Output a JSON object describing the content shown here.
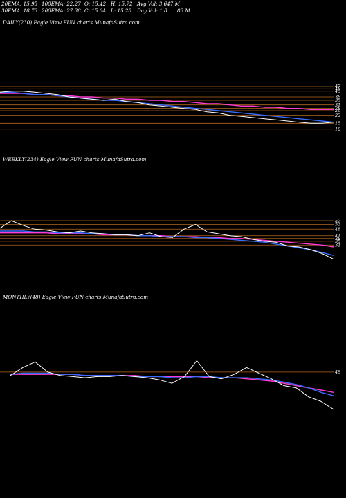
{
  "header": {
    "ema20": "20EMA: 15.95",
    "ema100": "100EMA: 22.27",
    "open": "O: 15.42",
    "high": "H: 15.72",
    "avg_vol": "Avg Vol: 3.647 M",
    "ema30": "30EMA: 18.73",
    "ema200": "200EMA: 27.38",
    "close": "C: 15.64",
    "low": "L: 15.28",
    "day_vol": "Day Vol: 1.8",
    "day_vol_unit": "83 M"
  },
  "chart_data": [
    {
      "type": "line",
      "title": "DAILY(230) Eagle   View  FUN  charts MunafaSutra.com",
      "y_tick_labels": [
        "47",
        "45",
        "43",
        "38",
        "35",
        "31",
        "28",
        "26",
        "22",
        "15",
        "10"
      ],
      "colors": {
        "price": "#ffffff",
        "short_ema": "#3a6bff",
        "long_ema": "#ff3bd1",
        "levels": "#b5651d",
        "background": "#000000"
      },
      "series": [
        {
          "values": [
            42,
            43,
            43,
            42,
            41,
            40,
            38,
            37,
            36,
            35,
            36,
            34,
            33,
            31,
            30,
            29,
            28,
            27,
            25,
            24,
            22,
            21,
            20,
            19,
            18,
            17,
            16,
            15,
            15,
            16
          ]
        },
        {
          "values": [
            42,
            42,
            41,
            40,
            40,
            39,
            38,
            37,
            36,
            35,
            35,
            34,
            33,
            32,
            31,
            30,
            29,
            28,
            27,
            26,
            25,
            24,
            23,
            22,
            21,
            20,
            19,
            18,
            17,
            16
          ]
        },
        {
          "values": [
            41,
            41,
            41,
            40,
            40,
            39,
            39,
            38,
            38,
            37,
            37,
            36,
            36,
            35,
            35,
            34,
            34,
            33,
            32,
            32,
            31,
            30,
            30,
            29,
            29,
            28,
            28,
            27,
            27,
            27
          ]
        }
      ]
    },
    {
      "type": "line",
      "title": "WEEKLY(234) Eagle   View  FUN  charts MunafaSutra.com",
      "y_tick_labels": [
        "57",
        "53",
        "48",
        "41",
        "38",
        "35",
        "31"
      ],
      "colors": {
        "price": "#ffffff",
        "short_ema": "#3a6bff",
        "long_ema": "#ff3bd1",
        "levels": "#b5651d",
        "background": "#000000"
      },
      "series": [
        {
          "values": [
            49,
            57,
            52,
            48,
            47,
            45,
            44,
            46,
            44,
            43,
            42,
            42,
            41,
            44,
            40,
            39,
            48,
            53,
            45,
            43,
            41,
            40,
            37,
            35,
            34,
            30,
            29,
            26,
            22,
            16
          ]
        },
        {
          "values": [
            46,
            46,
            46,
            45,
            45,
            44,
            44,
            44,
            43,
            43,
            42,
            42,
            41,
            41,
            40,
            40,
            40,
            39,
            39,
            38,
            37,
            36,
            35,
            34,
            32,
            30,
            28,
            26,
            23,
            20
          ]
        },
        {
          "values": [
            44,
            44,
            44,
            44,
            44,
            43,
            43,
            43,
            43,
            42,
            42,
            42,
            41,
            41,
            41,
            40,
            40,
            40,
            39,
            39,
            38,
            38,
            37,
            36,
            35,
            34,
            33,
            32,
            31,
            29
          ]
        }
      ]
    },
    {
      "type": "line",
      "title": "MONTHLY(48) Eagle   View  FUN  charts MunafaSutra.com",
      "y_tick_labels": [
        "48"
      ],
      "colors": {
        "price": "#ffffff",
        "short_ema": "#3a6bff",
        "long_ema": "#ff3bd1",
        "levels": "#b5651d",
        "background": "#000000"
      },
      "series": [
        {
          "values": [
            45,
            52,
            57,
            48,
            45,
            44,
            43,
            44,
            44,
            45,
            44,
            43,
            41,
            38,
            44,
            58,
            44,
            42,
            46,
            52,
            47,
            42,
            36,
            34,
            26,
            22,
            15
          ]
        },
        {
          "values": [
            46,
            47,
            47,
            47,
            46,
            46,
            45,
            45,
            45,
            45,
            44,
            44,
            44,
            43,
            43,
            44,
            44,
            43,
            43,
            43,
            42,
            41,
            39,
            37,
            34,
            30,
            27
          ]
        },
        {
          "values": [
            46,
            46,
            46,
            46,
            46,
            46,
            45,
            45,
            45,
            45,
            45,
            44,
            44,
            44,
            44,
            44,
            43,
            43,
            43,
            42,
            41,
            40,
            38,
            36,
            34,
            32,
            30
          ]
        }
      ]
    }
  ]
}
